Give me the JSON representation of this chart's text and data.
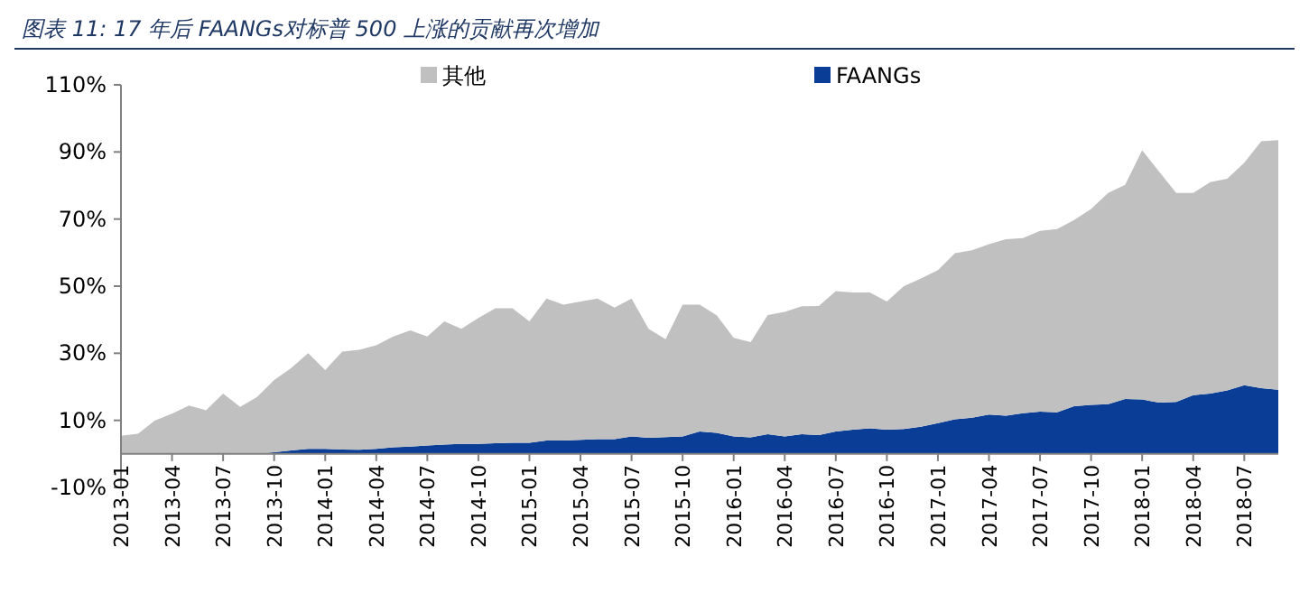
{
  "chart_data": {
    "type": "area",
    "title": "图表 11: 17 年后 FAANGs对标普 500 上涨的贡献再次增加",
    "stacked": true,
    "legend": "top",
    "categories": [
      "2013-01",
      null,
      null,
      "2013-04",
      null,
      null,
      "2013-07",
      null,
      null,
      "2013-10",
      null,
      null,
      "2014-01",
      null,
      null,
      "2014-04",
      null,
      null,
      "2014-07",
      null,
      null,
      "2014-10",
      null,
      null,
      "2015-01",
      null,
      null,
      "2015-04",
      null,
      null,
      "2015-07",
      null,
      null,
      "2015-10",
      null,
      null,
      "2016-01",
      null,
      null,
      "2016-04",
      null,
      null,
      "2016-07",
      null,
      null,
      "2016-10",
      null,
      null,
      "2017-01",
      null,
      null,
      "2017-04",
      null,
      null,
      "2017-07",
      null,
      null,
      "2017-10",
      null,
      null,
      "2018-01",
      null,
      null,
      "2018-04",
      null,
      null,
      "2018-07",
      null,
      null
    ],
    "ylim": [
      -10,
      110
    ],
    "yticks": [
      {
        "value": -10,
        "label": "-10%"
      },
      {
        "value": 10,
        "label": "10%"
      },
      {
        "value": 30,
        "label": "30%"
      },
      {
        "value": 50,
        "label": "50%"
      },
      {
        "value": 70,
        "label": "70%"
      },
      {
        "value": 90,
        "label": "90%"
      },
      {
        "value": 110,
        "label": "110%"
      }
    ],
    "series": [
      {
        "name": "FAANGs",
        "color": "#0a3d96",
        "values": [
          0,
          0,
          0,
          0,
          0,
          0,
          0,
          0,
          0,
          0.5,
          1,
          1.5,
          1.5,
          1.3,
          1.2,
          1.5,
          2,
          2.2,
          2.5,
          2.8,
          3,
          3,
          3.2,
          3.3,
          3.3,
          4,
          4,
          4.2,
          4.4,
          4.4,
          5.2,
          4.8,
          5,
          5.2,
          6.7,
          6.3,
          5.2,
          4.9,
          5.9,
          5.2,
          5.9,
          5.6,
          6.7,
          7.2,
          7.6,
          7.2,
          7.4,
          8.1,
          9.2,
          10.3,
          10.8,
          11.7,
          11.4,
          12.1,
          12.6,
          12.4,
          14.2,
          14.6,
          14.8,
          16.4,
          16.2,
          15.3,
          15.5,
          17.5,
          18,
          18.9,
          20.5,
          19.6,
          19.1
        ]
      },
      {
        "name": "其他",
        "color": "#c0c0c0",
        "values": [
          5.4,
          6,
          10,
          12,
          14.4,
          13,
          18,
          14,
          17,
          21.5,
          24.6,
          28.5,
          23.5,
          29.2,
          29.8,
          30.9,
          33,
          34.6,
          32.5,
          36.7,
          34.3,
          37.5,
          40.2,
          40.1,
          36.2,
          42.3,
          40.5,
          41.2,
          41.9,
          39.2,
          41.1,
          32.5,
          29.2,
          39.3,
          37.8,
          35,
          29.4,
          28.4,
          35.5,
          37.1,
          38.1,
          38.5,
          41.8,
          40.9,
          40.5,
          38.2,
          42.6,
          44.2,
          45.6,
          49.5,
          49.9,
          50.8,
          52.6,
          52.2,
          53.9,
          54.6,
          55.5,
          58.4,
          63,
          63.8,
          74.3,
          68.8,
          62.3,
          60.3,
          63,
          63.1,
          66.3,
          73.6,
          74.4
        ]
      }
    ]
  }
}
